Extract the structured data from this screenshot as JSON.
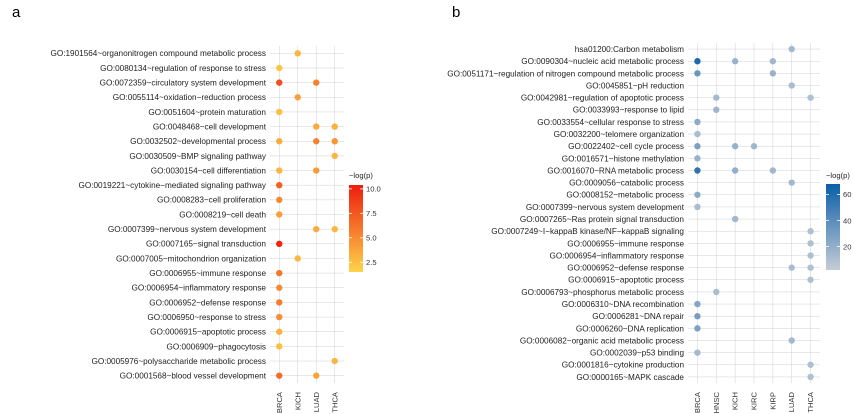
{
  "chart_data": [
    {
      "panel_label": "a",
      "type": "scatter",
      "title": "",
      "xlabel": "",
      "ylabel": "",
      "x_categories": [
        "BRCA",
        "KICH",
        "LUAD",
        "THCA"
      ],
      "terms": [
        "GO:1901564~organonitrogen compound metabolic process",
        "GO:0080134~regulation of response to stress",
        "GO:0072359~circulatory system development",
        "GO:0055114~oxidation−reduction process",
        "GO:0051604~protein maturation",
        "GO:0048468~cell development",
        "GO:0032502~developmental process",
        "GO:0030509~BMP signaling pathway",
        "GO:0030154~cell differentiation",
        "GO:0019221~cytokine−mediated signaling pathway",
        "GO:0008283~cell proliferation",
        "GO:0008219~cell death",
        "GO:0007399~nervous system development",
        "GO:0007165~signal transduction",
        "GO:0007005~mitochondrion organization",
        "GO:0006955~immune response",
        "GO:0006954~inflammatory response",
        "GO:0006952~defense response",
        "GO:0006950~response to stress",
        "GO:0006915~apoptotic process",
        "GO:0006909~phagocytosis",
        "GO:0005976~polysaccharide metabolic process",
        "GO:0001568~blood vessel development"
      ],
      "points": [
        {
          "term": 0,
          "x": "KICH",
          "value": 3.0
        },
        {
          "term": 1,
          "x": "BRCA",
          "value": 2.2
        },
        {
          "term": 2,
          "x": "BRCA",
          "value": 8.0
        },
        {
          "term": 2,
          "x": "LUAD",
          "value": 5.5
        },
        {
          "term": 3,
          "x": "KICH",
          "value": 4.0
        },
        {
          "term": 4,
          "x": "BRCA",
          "value": 2.5
        },
        {
          "term": 5,
          "x": "LUAD",
          "value": 3.5
        },
        {
          "term": 5,
          "x": "THCA",
          "value": 3.2
        },
        {
          "term": 6,
          "x": "BRCA",
          "value": 3.5
        },
        {
          "term": 6,
          "x": "LUAD",
          "value": 5.5
        },
        {
          "term": 6,
          "x": "THCA",
          "value": 4.5
        },
        {
          "term": 7,
          "x": "THCA",
          "value": 3.0
        },
        {
          "term": 8,
          "x": "BRCA",
          "value": 3.0
        },
        {
          "term": 8,
          "x": "LUAD",
          "value": 4.2
        },
        {
          "term": 9,
          "x": "BRCA",
          "value": 7.2
        },
        {
          "term": 10,
          "x": "BRCA",
          "value": 5.2
        },
        {
          "term": 11,
          "x": "BRCA",
          "value": 4.0
        },
        {
          "term": 12,
          "x": "LUAD",
          "value": 3.5
        },
        {
          "term": 12,
          "x": "THCA",
          "value": 3.0
        },
        {
          "term": 13,
          "x": "BRCA",
          "value": 10.0
        },
        {
          "term": 14,
          "x": "KICH",
          "value": 2.8
        },
        {
          "term": 15,
          "x": "BRCA",
          "value": 6.0
        },
        {
          "term": 16,
          "x": "BRCA",
          "value": 5.0
        },
        {
          "term": 17,
          "x": "BRCA",
          "value": 5.8
        },
        {
          "term": 18,
          "x": "BRCA",
          "value": 4.8
        },
        {
          "term": 19,
          "x": "BRCA",
          "value": 3.2
        },
        {
          "term": 20,
          "x": "BRCA",
          "value": 2.5
        },
        {
          "term": 21,
          "x": "THCA",
          "value": 3.0
        },
        {
          "term": 22,
          "x": "BRCA",
          "value": 6.5
        },
        {
          "term": 22,
          "x": "LUAD",
          "value": 3.8
        }
      ],
      "legend": {
        "title": "−log(p)",
        "ticks": [
          "10.0",
          "7.5",
          "5.0",
          "2.5"
        ],
        "tick_values": [
          10.0,
          7.5,
          5.0,
          2.5
        ],
        "range": [
          1.5,
          10.4
        ],
        "color_low": "#fdd44a",
        "color_high": "#ef1c0d",
        "placement": "right"
      }
    },
    {
      "panel_label": "b",
      "type": "scatter",
      "title": "",
      "xlabel": "",
      "ylabel": "",
      "x_categories": [
        "BRCA",
        "HNSC",
        "KICH",
        "KIRC",
        "KIRP",
        "LUAD",
        "THCA"
      ],
      "terms": [
        "hsa01200:Carbon metabolism",
        "GO:0090304~nucleic acid metabolic process",
        "GO:0051171~regulation of nitrogen compound metabolic process",
        "GO:0045851~pH reduction",
        "GO:0042981~regulation of apoptotic process",
        "GO:0033993~response to lipid",
        "GO:0033554~cellular response to stress",
        "GO:0032200~telomere organization",
        "GO:0022402~cell cycle process",
        "GO:0016571~histone methylation",
        "GO:0016070~RNA metabolic process",
        "GO:0009056~catabolic process",
        "GO:0008152~metabolic process",
        "GO:0007399~nervous system development",
        "GO:0007265~Ras protein signal transduction",
        "GO:0007249~I−kappaB kinase/NF−kappaB signaling",
        "GO:0006955~immune response",
        "GO:0006954~inflammatory response",
        "GO:0006952~defense response",
        "GO:0006915~apoptotic process",
        "GO:0006793~phosphorus metabolic process",
        "GO:0006310~DNA recombination",
        "GO:0006281~DNA repair",
        "GO:0006260~DNA replication",
        "GO:0006082~organic acid metabolic process",
        "GO:0002039~p53 binding",
        "GO:0001816~cytokine production",
        "GO:0000165~MAPK cascade"
      ],
      "points": [
        {
          "term": 0,
          "x": "LUAD",
          "value": 14
        },
        {
          "term": 1,
          "x": "BRCA",
          "value": 62
        },
        {
          "term": 1,
          "x": "KICH",
          "value": 18
        },
        {
          "term": 1,
          "x": "KIRP",
          "value": 15
        },
        {
          "term": 2,
          "x": "BRCA",
          "value": 35
        },
        {
          "term": 2,
          "x": "KIRP",
          "value": 18
        },
        {
          "term": 3,
          "x": "LUAD",
          "value": 12
        },
        {
          "term": 4,
          "x": "HNSC",
          "value": 14
        },
        {
          "term": 4,
          "x": "THCA",
          "value": 10
        },
        {
          "term": 5,
          "x": "HNSC",
          "value": 16
        },
        {
          "term": 6,
          "x": "BRCA",
          "value": 22
        },
        {
          "term": 7,
          "x": "BRCA",
          "value": 12
        },
        {
          "term": 8,
          "x": "BRCA",
          "value": 28
        },
        {
          "term": 8,
          "x": "KICH",
          "value": 18
        },
        {
          "term": 8,
          "x": "KIRC",
          "value": 15
        },
        {
          "term": 9,
          "x": "BRCA",
          "value": 18
        },
        {
          "term": 10,
          "x": "BRCA",
          "value": 55
        },
        {
          "term": 10,
          "x": "KICH",
          "value": 20
        },
        {
          "term": 10,
          "x": "KIRP",
          "value": 15
        },
        {
          "term": 11,
          "x": "LUAD",
          "value": 14
        },
        {
          "term": 12,
          "x": "BRCA",
          "value": 22
        },
        {
          "term": 13,
          "x": "BRCA",
          "value": 12
        },
        {
          "term": 14,
          "x": "KICH",
          "value": 15
        },
        {
          "term": 15,
          "x": "THCA",
          "value": 10
        },
        {
          "term": 16,
          "x": "THCA",
          "value": 10
        },
        {
          "term": 17,
          "x": "THCA",
          "value": 10
        },
        {
          "term": 18,
          "x": "LUAD",
          "value": 12
        },
        {
          "term": 18,
          "x": "THCA",
          "value": 10
        },
        {
          "term": 19,
          "x": "THCA",
          "value": 10
        },
        {
          "term": 20,
          "x": "HNSC",
          "value": 12
        },
        {
          "term": 21,
          "x": "BRCA",
          "value": 25
        },
        {
          "term": 22,
          "x": "BRCA",
          "value": 30
        },
        {
          "term": 23,
          "x": "BRCA",
          "value": 28
        },
        {
          "term": 24,
          "x": "LUAD",
          "value": 14
        },
        {
          "term": 25,
          "x": "BRCA",
          "value": 14
        },
        {
          "term": 26,
          "x": "THCA",
          "value": 10
        },
        {
          "term": 27,
          "x": "THCA",
          "value": 10
        }
      ],
      "legend": {
        "title": "−log(p)",
        "ticks": [
          "60",
          "40",
          "20"
        ],
        "tick_values": [
          60,
          40,
          20
        ],
        "range": [
          2,
          68
        ],
        "color_low": "#c6cdd6",
        "color_high": "#0a5ea8",
        "placement": "right"
      }
    }
  ]
}
